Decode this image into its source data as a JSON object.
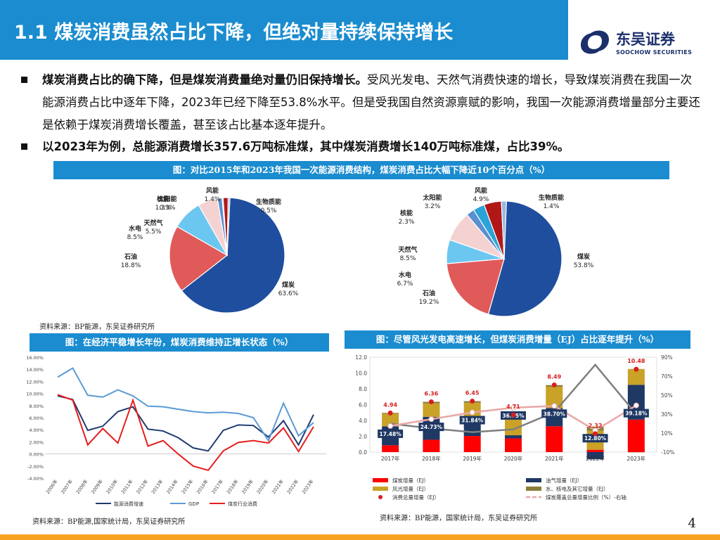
{
  "header": {
    "title": "1.1 煤炭消费虽然占比下降，但绝对量持续保持增长",
    "logo_brand": "东吴证券",
    "logo_sub": "SOOCHOW SECURITIES"
  },
  "bullets": [
    {
      "bold": "煤炭消费占比的确下降，但是煤炭消费量绝对量仍旧保持增长。",
      "text": "受风光发电、天然气消费快速的增长，导致煤炭消费在我国一次能源消费占比中逐年下降，2023年已经下降至53.8%水平。但是受我国自然资源禀赋的影响，我国一次能源消费增量部分主要还是依赖于煤炭消费增长覆盖，甚至该占比基本逐年提升。"
    },
    {
      "bold": "以2023年为例，总能源消费增长357.6万吨标准煤，其中煤炭消费增长140万吨标准煤，占比39%。",
      "text": ""
    }
  ],
  "chart_titles": {
    "pies": "图：对比2015年和2023年我国一次能源消费结构，煤炭消费占比大幅下降近10个百分点（%）",
    "line": "图：在经济平稳增长年份，煤炭消费维持正增长状态（%）",
    "bar": "图：尽管风光发电高速增长，但煤炭消费增量（EJ）占比逐年提升（%）"
  },
  "sources": {
    "pies": "资料来源：BP能源，东吴证券研究所",
    "line": "资料来源：BP能源,国家统计局，东吴证券研究所",
    "bar": "资料来源：BP能源，国家统计局，东吴证券研究所"
  },
  "page_number": "4",
  "colors": {
    "coal": "#1f4e9e",
    "oil": "#e05a5a",
    "hydro": "#6cc7f0",
    "gas": "#f5d2d2",
    "nuclear": "#5a8fd0",
    "solar": "#2aa3d8",
    "wind": "#b01818",
    "bio": "#9ab8e0",
    "line_gdp": "#5b9bd5",
    "line_energy": "#1f3b70",
    "line_coal": "#e61e1e",
    "bar_coal": "#ff0000",
    "bar_oilgas": "#1f3864",
    "bar_windsolar": "#c9a227",
    "bar_hydro": "#8b7d3a",
    "total_dot": "#d81e1e",
    "ratio_line": "#e9a7a7",
    "gray_line": "#7f7f7f"
  },
  "chart_data": [
    {
      "type": "pie",
      "title": "2015",
      "slices": [
        {
          "name": "煤炭",
          "value": 63.6,
          "label": "63.6%"
        },
        {
          "name": "石油",
          "value": 18.8,
          "label": "18.8%"
        },
        {
          "name": "水电",
          "value": 8.5,
          "label": "8.5%"
        },
        {
          "name": "天然气",
          "value": 5.5,
          "label": "5.5%"
        },
        {
          "name": "核能",
          "value": 1.3,
          "label": "1.3%"
        },
        {
          "name": "太阳能",
          "value": 0.3,
          "label": "0.3%"
        },
        {
          "name": "风能",
          "value": 1.4,
          "label": "1.4%"
        },
        {
          "name": "生物质能",
          "value": 0.5,
          "label": "0.5%"
        }
      ]
    },
    {
      "type": "pie",
      "title": "2023",
      "slices": [
        {
          "name": "煤炭",
          "value": 53.8,
          "label": "53.8%"
        },
        {
          "name": "石油",
          "value": 19.2,
          "label": "19.2%"
        },
        {
          "name": "水电",
          "value": 6.7,
          "label": "6.7%"
        },
        {
          "name": "天然气",
          "value": 8.5,
          "label": "8.5%"
        },
        {
          "name": "核能",
          "value": 2.3,
          "label": "2.3%"
        },
        {
          "name": "太阳能",
          "value": 3.2,
          "label": "3.2%"
        },
        {
          "name": "风能",
          "value": 4.9,
          "label": "4.9%"
        },
        {
          "name": "生物质能",
          "value": 1.4,
          "label": "1.4%"
        }
      ]
    },
    {
      "type": "line",
      "x": [
        "2006年",
        "2007年",
        "2008年",
        "2009年",
        "2010年",
        "2011年",
        "2012年",
        "2013年",
        "2014年",
        "2015年",
        "2016年",
        "2017年",
        "2018年",
        "2019年",
        "2020年",
        "2021年",
        "2022年",
        "2023年"
      ],
      "ylim": [
        -4,
        16
      ],
      "yticks": [
        "-4.00%",
        "-2.00%",
        "0.00%",
        "2.00%",
        "4.00%",
        "6.00%",
        "8.00%",
        "10.00%",
        "12.00%",
        "14.00%",
        "16.00%"
      ],
      "series": [
        {
          "name": "能源消费增速",
          "values": [
            9.6,
            9.0,
            3.9,
            4.6,
            7.0,
            7.8,
            4.1,
            3.8,
            2.7,
            1.0,
            0.5,
            3.9,
            4.8,
            4.7,
            2.8,
            5.5,
            1.5,
            6.5
          ]
        },
        {
          "name": "GDP",
          "values": [
            12.7,
            14.2,
            9.7,
            9.4,
            10.6,
            9.6,
            7.9,
            7.8,
            7.4,
            7.0,
            6.8,
            6.9,
            6.7,
            6.0,
            2.2,
            8.4,
            3.0,
            5.2
          ]
        },
        {
          "name": "煤炭行业消费",
          "values": [
            9.8,
            8.9,
            1.5,
            4.2,
            1.8,
            8.9,
            1.3,
            2.2,
            0.0,
            -2.0,
            -2.7,
            0.5,
            1.9,
            2.2,
            1.8,
            4.3,
            0.4,
            4.5
          ]
        }
      ]
    },
    {
      "type": "bar",
      "stacked": true,
      "categories": [
        "2017年",
        "2018年",
        "2019年",
        "2020年",
        "2021年",
        "2022年",
        "2023年"
      ],
      "ylim_left": [
        0,
        12
      ],
      "yticks_left": [
        "0.0",
        "2.0",
        "4.0",
        "6.0",
        "8.0",
        "10.0",
        "12.0"
      ],
      "ylim_right": [
        -10,
        90
      ],
      "yticks_right": [
        "-10%",
        "10%",
        "30%",
        "50%",
        "70%",
        "90%"
      ],
      "series": [
        {
          "name": "煤炭增量（EJ）",
          "values": [
            0.86,
            1.56,
            2.04,
            1.73,
            3.27,
            0.3,
            4.11
          ]
        },
        {
          "name": "油气增量（EJ）",
          "values": [
            2.4,
            2.9,
            2.4,
            0.4,
            2.3,
            -0.9,
            4.4
          ]
        },
        {
          "name": "风光增量（EJ）",
          "values": [
            1.6,
            1.7,
            1.8,
            2.2,
            2.7,
            2.4,
            2.0
          ]
        },
        {
          "name": "水、核电及其它增量（EJ）",
          "values": [
            0.1,
            0.2,
            0.2,
            0.2,
            0.2,
            0.5,
            -0.03
          ]
        }
      ],
      "total_series": {
        "name": "消费总量增量（EJ）",
        "values": [
          4.94,
          6.36,
          6.45,
          4.71,
          8.49,
          2.32,
          10.48
        ],
        "labels": [
          "4.94",
          "6.36",
          "6.45",
          "4.71",
          "8.49",
          "2.32",
          "10.48"
        ]
      },
      "ratio_series": {
        "name": "煤炭覆盖总量增量比例（%）-右轴",
        "values": [
          17.48,
          24.73,
          31.84,
          36.75,
          38.7,
          12.8,
          39.18
        ],
        "labels": [
          "17.48%",
          "24.73%",
          "31.84%",
          "36.75%",
          "38.70%",
          "12.80%",
          "39.18%"
        ]
      },
      "gray_series_values": [
        20.0,
        15.0,
        11.0,
        14.0,
        32.0,
        82.0,
        30.0
      ]
    }
  ]
}
